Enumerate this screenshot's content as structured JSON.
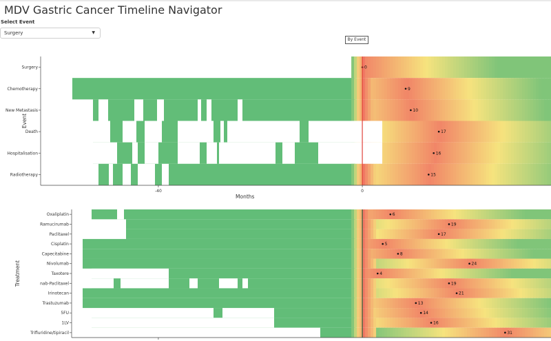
{
  "app": {
    "title": "MDV Gastric Cancer Timeline Navigator",
    "select_label": "Select Event",
    "selected_event": "Surgery",
    "view_button": "By Event"
  },
  "chart_data": [
    {
      "type": "heatmap",
      "title": "",
      "xlabel": "Months",
      "ylabel": "Event",
      "xlim": [
        -67,
        37
      ],
      "xticks": [
        -40,
        0
      ],
      "rows": [
        "Surgery",
        "Chemotherapy",
        "New Metastasis",
        "Death",
        "Hospitalisation",
        "Radiotherapy"
      ],
      "annotations": [
        {
          "row": "Surgery",
          "x": 0,
          "text": "0"
        },
        {
          "row": "Chemotherapy",
          "x": 8.5,
          "text": "9"
        },
        {
          "row": "New Metastasis",
          "x": 9.5,
          "text": "10"
        },
        {
          "row": "Death",
          "x": 15,
          "text": "17"
        },
        {
          "row": "Hospitalisation",
          "x": 14,
          "text": "16"
        },
        {
          "row": "Radiotherapy",
          "x": 13,
          "text": "15"
        }
      ],
      "vline_x": 0,
      "colors": {
        "low": "#62bd78",
        "mid": "#f6e37e",
        "high": "#ef5e5e"
      }
    },
    {
      "type": "heatmap",
      "title": "",
      "xlabel": "",
      "ylabel": "Treatment",
      "xlim": [
        -67,
        37
      ],
      "rows": [
        "Oxaliplatin",
        "Ramucirumab",
        "Paclitaxel",
        "Cisplatin",
        "Capecitabine",
        "Nivolumab",
        "Taxotere",
        "nab-Paclitaxel",
        "Irinotecan",
        "Trastuzumab",
        "5FU",
        "1LV",
        "Trifluridine/tipiracil"
      ],
      "annotations": [
        {
          "row": "Oxaliplatin",
          "x": 5.5,
          "text": "6"
        },
        {
          "row": "Ramucirumab",
          "x": 17,
          "text": "19"
        },
        {
          "row": "Paclitaxel",
          "x": 15,
          "text": "17"
        },
        {
          "row": "Cisplatin",
          "x": 4,
          "text": "5"
        },
        {
          "row": "Capecitabine",
          "x": 7,
          "text": "8"
        },
        {
          "row": "Nivolumab",
          "x": 21,
          "text": "24"
        },
        {
          "row": "Taxotere",
          "x": 3,
          "text": "4"
        },
        {
          "row": "nab-Paclitaxel",
          "x": 17,
          "text": "19"
        },
        {
          "row": "Irinotecan",
          "x": 18.5,
          "text": "21"
        },
        {
          "row": "Trastuzumab",
          "x": 10.5,
          "text": "13"
        },
        {
          "row": "5FU",
          "x": 11.5,
          "text": "14"
        },
        {
          "row": "1LV",
          "x": 13.5,
          "text": "16"
        },
        {
          "row": "Trifluridine/tipiracil",
          "x": 28,
          "text": "31"
        }
      ],
      "vline_x": 0,
      "colors": {
        "low": "#62bd78",
        "mid": "#f6e37e",
        "high": "#ef5e5e"
      }
    }
  ]
}
